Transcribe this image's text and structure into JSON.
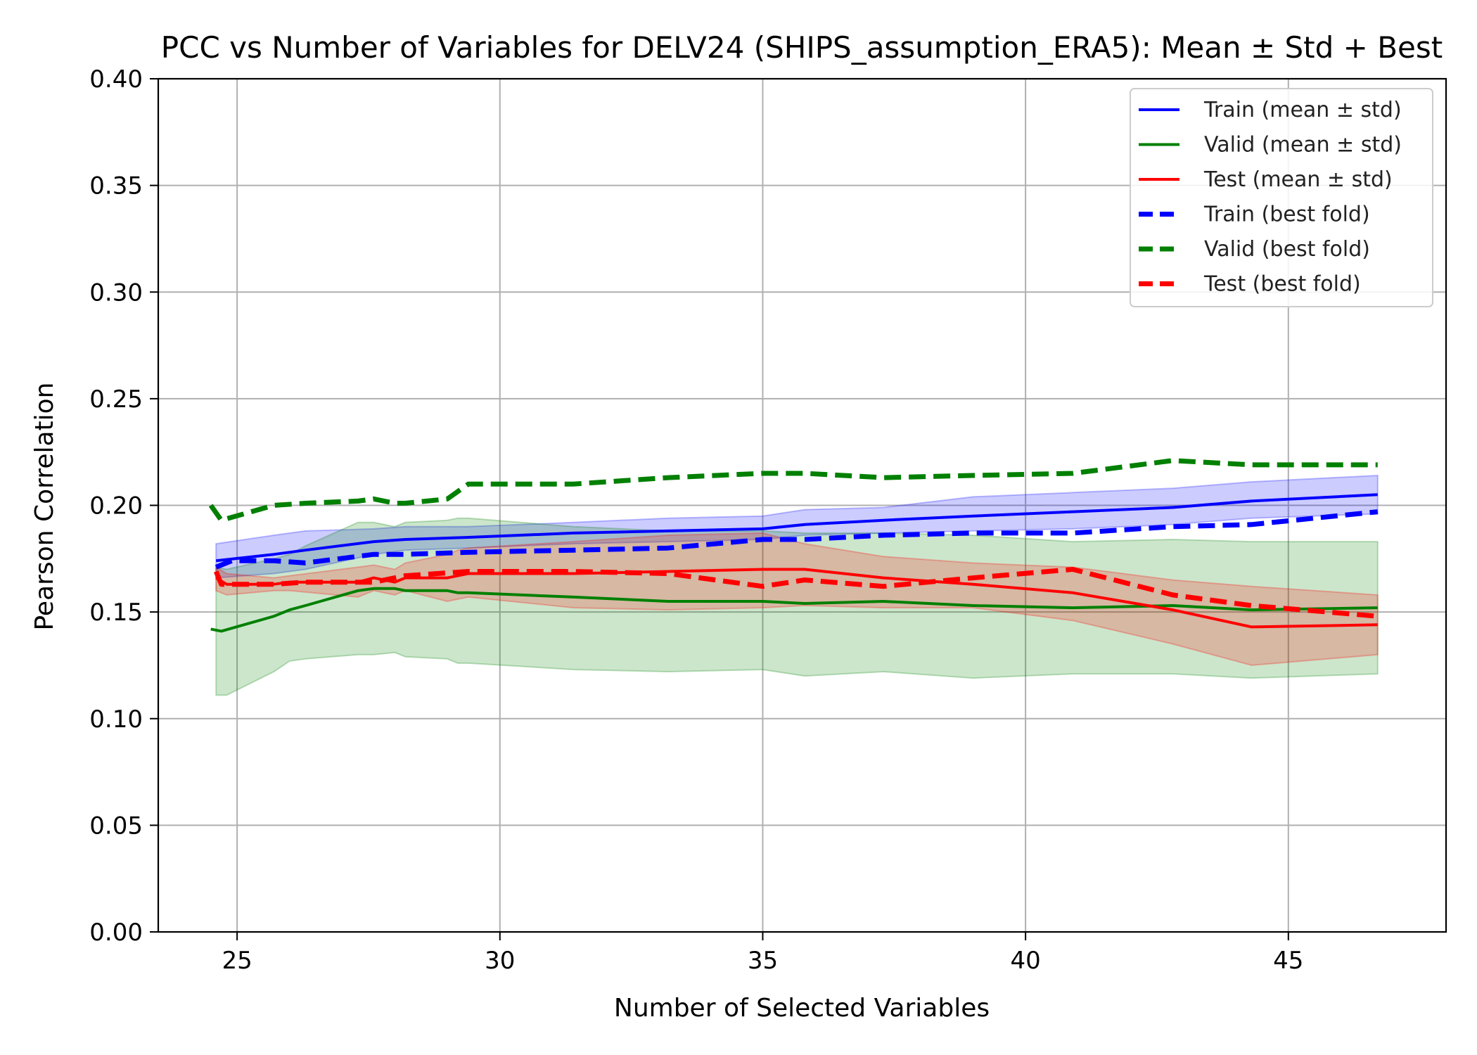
{
  "chart_data": {
    "type": "line",
    "title": "PCC vs Number of Variables for DELV24 (SHIPS_assumption_ERA5): Mean ± Std + Best",
    "xlabel": "Number of Selected Variables",
    "ylabel": "Pearson Correlation",
    "xlim": [
      23.5,
      48
    ],
    "ylim": [
      0.0,
      0.4
    ],
    "xticks": [
      25,
      30,
      35,
      40,
      45
    ],
    "xtick_labels": [
      "25",
      "30",
      "35",
      "40",
      "45"
    ],
    "yticks": [
      0.0,
      0.05,
      0.1,
      0.15,
      0.2,
      0.25,
      0.3,
      0.35,
      0.4
    ],
    "ytick_labels": [
      "0.00",
      "0.05",
      "0.10",
      "0.15",
      "0.20",
      "0.25",
      "0.30",
      "0.35",
      "0.40"
    ],
    "grid": true,
    "legend_position": "top-right",
    "legend": [
      {
        "label": "Train (mean ± std)",
        "color": "#0000ff",
        "style": "solid"
      },
      {
        "label": "Valid (mean ± std)",
        "color": "#008000",
        "style": "solid"
      },
      {
        "label": "Test (mean ± std)",
        "color": "#ff0000",
        "style": "solid"
      },
      {
        "label": "Train (best fold)",
        "color": "#0000ff",
        "style": "dashed"
      },
      {
        "label": "Valid (best fold)",
        "color": "#008000",
        "style": "dashed"
      },
      {
        "label": "Test (best fold)",
        "color": "#ff0000",
        "style": "dashed"
      }
    ],
    "bands": [
      {
        "color": "#0000ff",
        "opacity": 0.2,
        "x": [
          24.6,
          25.7,
          26.3,
          27.6,
          28.2,
          29.4,
          31.4,
          33.2,
          35.0,
          35.8,
          37.3,
          39.0,
          40.9,
          42.8,
          44.3,
          46.7
        ],
        "upper": [
          0.182,
          0.186,
          0.188,
          0.189,
          0.19,
          0.19,
          0.192,
          0.194,
          0.195,
          0.198,
          0.199,
          0.204,
          0.206,
          0.208,
          0.211,
          0.214
        ],
        "lower": [
          0.166,
          0.168,
          0.17,
          0.177,
          0.179,
          0.18,
          0.182,
          0.183,
          0.184,
          0.186,
          0.187,
          0.188,
          0.189,
          0.191,
          0.194,
          0.196
        ]
      },
      {
        "color": "#008000",
        "opacity": 0.2,
        "x": [
          24.6,
          24.8,
          25.7,
          26.0,
          26.3,
          27.3,
          27.6,
          28.0,
          28.2,
          29.0,
          29.2,
          29.4,
          31.4,
          33.2,
          35.0,
          35.8,
          37.3,
          39.0,
          40.9,
          42.8,
          44.3,
          46.7
        ],
        "upper": [
          0.171,
          0.17,
          0.175,
          0.177,
          0.181,
          0.192,
          0.192,
          0.19,
          0.192,
          0.193,
          0.194,
          0.194,
          0.19,
          0.188,
          0.188,
          0.187,
          0.187,
          0.186,
          0.183,
          0.184,
          0.183,
          0.183
        ],
        "lower": [
          0.111,
          0.111,
          0.122,
          0.127,
          0.128,
          0.13,
          0.13,
          0.131,
          0.129,
          0.128,
          0.126,
          0.126,
          0.123,
          0.122,
          0.123,
          0.12,
          0.122,
          0.119,
          0.121,
          0.121,
          0.119,
          0.121
        ]
      },
      {
        "color": "#ff0000",
        "opacity": 0.2,
        "x": [
          24.6,
          24.8,
          25.7,
          26.0,
          27.3,
          27.6,
          28.0,
          28.2,
          29.0,
          29.2,
          29.4,
          31.4,
          33.2,
          35.0,
          35.8,
          37.3,
          39.0,
          40.9,
          42.8,
          44.3,
          46.7
        ],
        "upper": [
          0.171,
          0.168,
          0.166,
          0.167,
          0.171,
          0.172,
          0.17,
          0.173,
          0.177,
          0.179,
          0.18,
          0.183,
          0.186,
          0.187,
          0.182,
          0.176,
          0.173,
          0.171,
          0.165,
          0.162,
          0.158
        ],
        "lower": [
          0.16,
          0.158,
          0.16,
          0.16,
          0.157,
          0.16,
          0.158,
          0.16,
          0.155,
          0.156,
          0.157,
          0.152,
          0.151,
          0.152,
          0.153,
          0.152,
          0.152,
          0.146,
          0.135,
          0.125,
          0.13
        ]
      }
    ],
    "series": [
      {
        "name": "Train (mean ± std)",
        "color": "#0000ff",
        "style": "solid",
        "x": [
          24.6,
          25.7,
          26.3,
          27.6,
          28.2,
          29.4,
          31.4,
          33.2,
          35.0,
          35.8,
          37.3,
          39.0,
          40.9,
          42.8,
          44.3,
          46.7
        ],
        "y": [
          0.174,
          0.177,
          0.179,
          0.183,
          0.184,
          0.185,
          0.187,
          0.188,
          0.189,
          0.191,
          0.193,
          0.195,
          0.197,
          0.199,
          0.202,
          0.205
        ]
      },
      {
        "name": "Valid (mean ± std)",
        "color": "#008000",
        "style": "solid",
        "x": [
          24.5,
          24.7,
          25.7,
          26.0,
          26.3,
          27.3,
          27.6,
          28.0,
          28.2,
          29.0,
          29.2,
          29.4,
          31.4,
          33.2,
          35.0,
          35.8,
          37.3,
          39.0,
          40.9,
          42.8,
          44.3,
          46.7
        ],
        "y": [
          0.142,
          0.141,
          0.148,
          0.151,
          0.153,
          0.16,
          0.161,
          0.161,
          0.16,
          0.16,
          0.159,
          0.159,
          0.157,
          0.155,
          0.155,
          0.154,
          0.155,
          0.153,
          0.152,
          0.153,
          0.151,
          0.152
        ]
      },
      {
        "name": "Test (mean ± std)",
        "color": "#ff0000",
        "style": "solid",
        "x": [
          24.6,
          24.8,
          25.7,
          26.0,
          27.3,
          27.6,
          28.0,
          28.2,
          29.0,
          29.2,
          29.4,
          31.4,
          33.2,
          35.0,
          35.8,
          37.3,
          39.0,
          40.9,
          42.8,
          44.3,
          46.7
        ],
        "y": [
          0.166,
          0.163,
          0.163,
          0.164,
          0.164,
          0.166,
          0.164,
          0.166,
          0.166,
          0.167,
          0.168,
          0.168,
          0.169,
          0.17,
          0.17,
          0.166,
          0.163,
          0.159,
          0.151,
          0.143,
          0.144
        ]
      },
      {
        "name": "Train (best fold)",
        "color": "#0000ff",
        "style": "dashed",
        "x": [
          24.6,
          24.9,
          25.7,
          26.3,
          27.6,
          28.2,
          29.4,
          31.4,
          33.2,
          35.0,
          35.8,
          37.3,
          39.0,
          40.9,
          42.8,
          44.3,
          46.7
        ],
        "y": [
          0.171,
          0.174,
          0.174,
          0.173,
          0.177,
          0.177,
          0.178,
          0.179,
          0.18,
          0.184,
          0.184,
          0.186,
          0.187,
          0.187,
          0.19,
          0.191,
          0.197
        ]
      },
      {
        "name": "Valid (best fold)",
        "color": "#008000",
        "style": "dashed",
        "x": [
          24.5,
          24.7,
          25.7,
          26.3,
          27.3,
          27.6,
          28.0,
          28.2,
          29.0,
          29.4,
          31.4,
          33.2,
          35.0,
          35.8,
          37.3,
          39.0,
          40.9,
          42.8,
          44.3,
          46.7
        ],
        "y": [
          0.2,
          0.193,
          0.2,
          0.201,
          0.202,
          0.203,
          0.201,
          0.201,
          0.203,
          0.21,
          0.21,
          0.213,
          0.215,
          0.215,
          0.213,
          0.214,
          0.215,
          0.221,
          0.219,
          0.219
        ]
      },
      {
        "name": "Test (best fold)",
        "color": "#ff0000",
        "style": "dashed",
        "x": [
          24.6,
          24.7,
          25.7,
          26.3,
          27.6,
          28.2,
          29.4,
          31.4,
          33.2,
          35.0,
          35.8,
          37.3,
          39.0,
          40.9,
          42.8,
          44.3,
          46.7
        ],
        "y": [
          0.169,
          0.163,
          0.163,
          0.164,
          0.164,
          0.167,
          0.169,
          0.169,
          0.168,
          0.162,
          0.165,
          0.162,
          0.166,
          0.17,
          0.158,
          0.153,
          0.148
        ]
      }
    ]
  }
}
